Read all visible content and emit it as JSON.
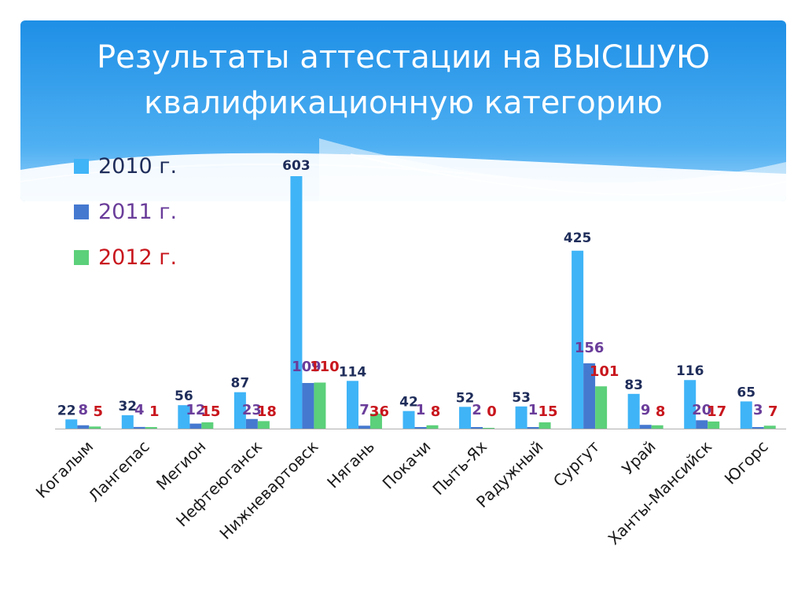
{
  "slide": {
    "title_line1": "Результаты аттестации на ВЫСШУЮ",
    "title_line2": "квалификационную категорию"
  },
  "colors": {
    "band_dark": "#1e8fe6",
    "band_light": "#9fd3fa",
    "title_text": "#ffffff",
    "axis": "#b0b0b0",
    "category_label": "#1a1a1a"
  },
  "legend": {
    "placement": "top-left",
    "items": [
      {
        "label": "2010 г.",
        "color": "#3fb4f7",
        "text_color": "#1f2d5a"
      },
      {
        "label": "2011 г.",
        "color": "#4579d0",
        "text_color": "#6a3d9a"
      },
      {
        "label": "2012 г.",
        "color": "#5cd07a",
        "text_color": "#c8161d"
      }
    ]
  },
  "chart_data": {
    "type": "bar",
    "title": "Результаты аттестации на ВЫСШУЮ квалификационную категорию",
    "xlabel": "",
    "ylabel": "",
    "ylim": [
      0,
      603
    ],
    "grid": false,
    "legend_placement": "top-left",
    "categories": [
      "Когалым",
      "Лангепас",
      "Мегион",
      "Нефтеюганск",
      "Нижневартовск",
      "Нягань",
      "Покачи",
      "Пыть-Ях",
      "Радужный",
      "Сургут",
      "Урай",
      "Ханты-Мансийск",
      "Югорс"
    ],
    "series": [
      {
        "name": "2010 г.",
        "color": "#3fb4f7",
        "label_color": "#1f2d5a",
        "values": [
          22,
          32,
          56,
          87,
          603,
          114,
          42,
          52,
          53,
          425,
          83,
          116,
          65
        ]
      },
      {
        "name": "2011 г.",
        "color": "#4579d0",
        "label_color": "#6a3d9a",
        "values": [
          8,
          4,
          12,
          23,
          109,
          7,
          1,
          2,
          1,
          156,
          9,
          20,
          3
        ]
      },
      {
        "name": "2012 г.",
        "color": "#5cd07a",
        "label_color": "#c8161d",
        "values": [
          5,
          1,
          15,
          18,
          110,
          36,
          8,
          0,
          15,
          101,
          8,
          17,
          7
        ]
      }
    ]
  }
}
